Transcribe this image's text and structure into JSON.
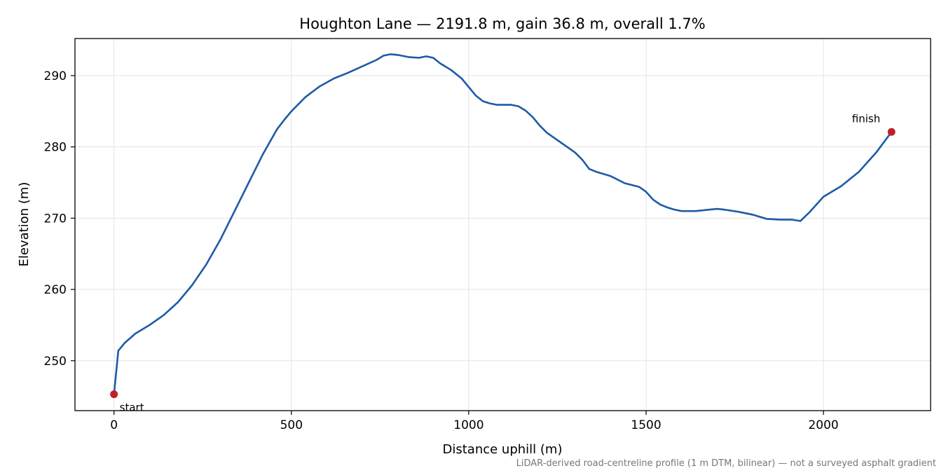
{
  "chart_data": {
    "type": "line",
    "title": "Houghton Lane — 2191.8 m, gain 36.8 m, overall 1.7%",
    "xlabel": "Distance uphill (m)",
    "ylabel": "Elevation (m)",
    "xlim": [
      -110,
      2302
    ],
    "ylim": [
      243,
      295.2
    ],
    "x_ticks": [
      0,
      500,
      1000,
      1500,
      2000
    ],
    "x_tick_labels": [
      "0",
      "500",
      "1000",
      "1500",
      "2000"
    ],
    "y_ticks": [
      250,
      260,
      270,
      280,
      290
    ],
    "y_tick_labels": [
      "250",
      "260",
      "270",
      "280",
      "290"
    ],
    "grid": true,
    "footnote": "LiDAR-derived road-centreline profile (1 m DTM, bilinear) — not a surveyed asphalt gradient",
    "colors": {
      "line": "#1f5aa6",
      "marker": "#c0202a",
      "grid": "#e3e3e3",
      "axis": "#000000",
      "footnote": "#777777"
    },
    "series": [
      {
        "x": [
          0,
          12,
          30,
          60,
          100,
          140,
          180,
          220,
          260,
          300,
          340,
          380,
          420,
          460,
          480,
          500,
          540,
          580,
          620,
          660,
          700,
          740,
          760,
          780,
          800,
          830,
          860,
          880,
          900,
          920,
          950,
          980,
          1000,
          1020,
          1040,
          1060,
          1080,
          1100,
          1120,
          1140,
          1160,
          1180,
          1200,
          1220,
          1240,
          1260,
          1280,
          1300,
          1320,
          1340,
          1360,
          1400,
          1440,
          1480,
          1500,
          1520,
          1540,
          1560,
          1580,
          1600,
          1640,
          1680,
          1700,
          1720,
          1760,
          1800,
          1840,
          1880,
          1910,
          1935,
          1960,
          2000,
          2050,
          2100,
          2150,
          2191.8
        ],
        "y": [
          245.3,
          251.4,
          252.5,
          253.8,
          255.0,
          256.4,
          258.2,
          260.6,
          263.5,
          267.0,
          271.0,
          275.0,
          279.0,
          282.5,
          283.8,
          285.0,
          287.0,
          288.5,
          289.6,
          290.4,
          291.3,
          292.2,
          292.8,
          293.0,
          292.9,
          292.6,
          292.5,
          292.7,
          292.5,
          291.7,
          290.8,
          289.6,
          288.4,
          287.2,
          286.4,
          286.1,
          285.9,
          285.9,
          285.9,
          285.7,
          285.1,
          284.2,
          283.0,
          282.0,
          281.3,
          280.6,
          279.9,
          279.2,
          278.2,
          276.9,
          276.5,
          275.9,
          274.9,
          274.4,
          273.7,
          272.6,
          271.9,
          271.5,
          271.2,
          271.0,
          271.0,
          271.2,
          271.3,
          271.2,
          270.9,
          270.5,
          269.9,
          269.8,
          269.8,
          269.6,
          270.8,
          273.0,
          274.5,
          276.5,
          279.3,
          282.1
        ]
      }
    ],
    "annotations": [
      {
        "label": "start",
        "x": 0,
        "y": 245.3
      },
      {
        "label": "finish",
        "x": 2191.8,
        "y": 282.1
      }
    ]
  }
}
